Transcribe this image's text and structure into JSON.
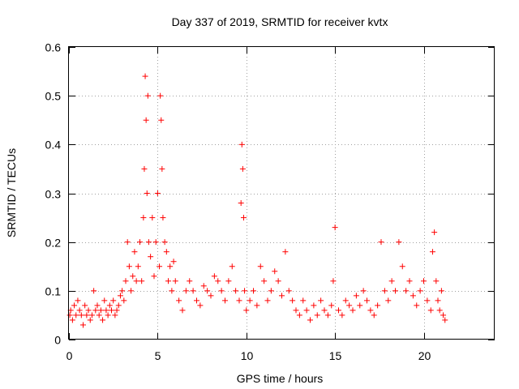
{
  "chart_data": {
    "type": "scatter",
    "title": "Day 337 of 2019, SRMTID for receiver kvtx",
    "xlabel": "GPS time / hours",
    "ylabel": "SRMTID / TECUs",
    "xlim": [
      0,
      24
    ],
    "ylim": [
      0,
      0.6
    ],
    "xticks": [
      0,
      5,
      10,
      15,
      20
    ],
    "yticks": [
      0,
      0.1,
      0.2,
      0.3,
      0.4,
      0.5,
      0.6
    ],
    "xtick_labels": [
      "0",
      "5",
      "10",
      "15",
      "20"
    ],
    "ytick_labels": [
      "0",
      "0.1",
      "0.2",
      "0.3",
      "0.4",
      "0.5",
      "0.6"
    ],
    "grid": true,
    "marker": "+",
    "color": "#ff0000",
    "series": [
      {
        "name": "SRMTID",
        "x": [
          0.05,
          0.1,
          0.2,
          0.3,
          0.4,
          0.5,
          0.6,
          0.7,
          0.8,
          0.9,
          1.0,
          1.1,
          1.2,
          1.3,
          1.4,
          1.5,
          1.6,
          1.7,
          1.8,
          1.9,
          2.0,
          2.1,
          2.2,
          2.3,
          2.4,
          2.5,
          2.6,
          2.7,
          2.8,
          2.9,
          3.0,
          3.1,
          3.2,
          3.3,
          3.4,
          3.5,
          3.6,
          3.7,
          3.8,
          3.9,
          4.0,
          4.1,
          4.2,
          4.25,
          4.3,
          4.35,
          4.4,
          4.45,
          4.5,
          4.6,
          4.7,
          4.8,
          4.9,
          5.0,
          5.1,
          5.15,
          5.2,
          5.25,
          5.3,
          5.4,
          5.5,
          5.6,
          5.7,
          5.8,
          5.9,
          6.0,
          6.2,
          6.4,
          6.6,
          6.8,
          7.0,
          7.2,
          7.4,
          7.6,
          7.8,
          8.0,
          8.2,
          8.4,
          8.6,
          8.8,
          9.0,
          9.2,
          9.4,
          9.6,
          9.7,
          9.75,
          9.8,
          9.85,
          9.9,
          10.0,
          10.2,
          10.4,
          10.6,
          10.8,
          11.0,
          11.2,
          11.4,
          11.6,
          11.8,
          12.0,
          12.2,
          12.4,
          12.6,
          12.8,
          13.0,
          13.2,
          13.4,
          13.6,
          13.8,
          14.0,
          14.2,
          14.4,
          14.6,
          14.8,
          14.9,
          15.0,
          15.2,
          15.4,
          15.6,
          15.8,
          16.0,
          16.2,
          16.4,
          16.6,
          16.8,
          17.0,
          17.2,
          17.4,
          17.6,
          17.8,
          18.0,
          18.2,
          18.4,
          18.6,
          18.8,
          19.0,
          19.2,
          19.4,
          19.6,
          19.8,
          20.0,
          20.2,
          20.4,
          20.5,
          20.6,
          20.7,
          20.8,
          20.9,
          21.0,
          21.1,
          21.2
        ],
        "y": [
          0.05,
          0.06,
          0.04,
          0.07,
          0.05,
          0.08,
          0.06,
          0.05,
          0.03,
          0.07,
          0.05,
          0.06,
          0.04,
          0.05,
          0.1,
          0.06,
          0.07,
          0.05,
          0.06,
          0.04,
          0.08,
          0.06,
          0.05,
          0.07,
          0.06,
          0.08,
          0.05,
          0.06,
          0.07,
          0.09,
          0.1,
          0.08,
          0.12,
          0.2,
          0.15,
          0.1,
          0.13,
          0.18,
          0.12,
          0.15,
          0.2,
          0.12,
          0.25,
          0.35,
          0.54,
          0.45,
          0.3,
          0.5,
          0.2,
          0.17,
          0.25,
          0.13,
          0.2,
          0.3,
          0.15,
          0.5,
          0.45,
          0.35,
          0.25,
          0.2,
          0.18,
          0.12,
          0.15,
          0.1,
          0.16,
          0.12,
          0.08,
          0.06,
          0.1,
          0.12,
          0.1,
          0.08,
          0.07,
          0.11,
          0.1,
          0.09,
          0.13,
          0.12,
          0.1,
          0.08,
          0.12,
          0.15,
          0.1,
          0.08,
          0.28,
          0.4,
          0.35,
          0.25,
          0.1,
          0.06,
          0.08,
          0.1,
          0.07,
          0.15,
          0.12,
          0.08,
          0.1,
          0.14,
          0.12,
          0.09,
          0.18,
          0.1,
          0.08,
          0.06,
          0.05,
          0.08,
          0.06,
          0.04,
          0.07,
          0.05,
          0.08,
          0.06,
          0.05,
          0.07,
          0.12,
          0.23,
          0.06,
          0.05,
          0.08,
          0.07,
          0.06,
          0.09,
          0.07,
          0.1,
          0.08,
          0.06,
          0.05,
          0.07,
          0.2,
          0.1,
          0.08,
          0.12,
          0.1,
          0.2,
          0.15,
          0.1,
          0.12,
          0.09,
          0.07,
          0.1,
          0.12,
          0.08,
          0.06,
          0.18,
          0.22,
          0.12,
          0.08,
          0.06,
          0.1,
          0.05,
          0.04
        ]
      }
    ]
  }
}
